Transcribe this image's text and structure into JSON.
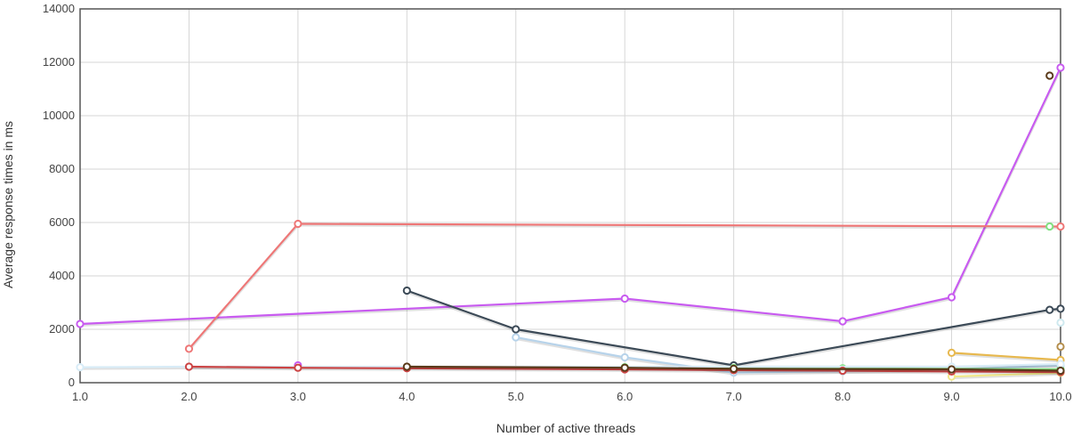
{
  "chart_data": {
    "type": "line",
    "xlabel": "Number of active threads",
    "ylabel": "Average response times in ms",
    "xlim": [
      1.0,
      10.0
    ],
    "ylim": [
      0,
      14000
    ],
    "x_ticks": [
      "1.0",
      "2.0",
      "3.0",
      "4.0",
      "5.0",
      "6.0",
      "7.0",
      "8.0",
      "9.0",
      "10.0"
    ],
    "y_ticks": [
      "0",
      "2000",
      "4000",
      "6000",
      "8000",
      "10000",
      "12000",
      "14000"
    ],
    "grid": true,
    "legend": "none",
    "series": [
      {
        "color": "#c85bf0",
        "points": [
          [
            1.0,
            2200
          ],
          [
            3.0,
            650
          ],
          [
            6.0,
            3150
          ],
          [
            8.0,
            2300
          ],
          [
            9.0,
            3200
          ],
          [
            10.0,
            11800
          ]
        ],
        "connect": [
          [
            0,
            2
          ],
          [
            2,
            3
          ],
          [
            3,
            4
          ],
          [
            4,
            5
          ]
        ]
      },
      {
        "color": "#ee7777",
        "points": [
          [
            2.0,
            1270
          ],
          [
            3.0,
            5950
          ],
          [
            10.0,
            5850
          ]
        ]
      },
      {
        "color": "#3c4a57",
        "points": [
          [
            4.0,
            3450
          ],
          [
            5.0,
            2000
          ],
          [
            7.0,
            650
          ],
          [
            9.9,
            2730
          ],
          [
            10.0,
            2770
          ]
        ]
      },
      {
        "color": "#b7d3ea",
        "points": [
          [
            5.0,
            1700
          ],
          [
            6.0,
            950
          ],
          [
            7.0,
            380
          ],
          [
            8.0,
            430
          ],
          [
            9.0,
            500
          ],
          [
            10.0,
            650
          ]
        ]
      },
      {
        "color": "#7fe07f",
        "points": [
          [
            6.0,
            580
          ],
          [
            7.0,
            550
          ],
          [
            8.0,
            540
          ],
          [
            9.0,
            520
          ],
          [
            9.9,
            5850
          ],
          [
            10.0,
            500
          ]
        ],
        "connect": [
          [
            0,
            1
          ],
          [
            1,
            2
          ],
          [
            2,
            3
          ],
          [
            3,
            5
          ]
        ]
      },
      {
        "color": "#e7b84e",
        "points": [
          [
            9.0,
            1120
          ],
          [
            10.0,
            850
          ]
        ]
      },
      {
        "color": "#f0e88a",
        "points": [
          [
            9.0,
            230
          ],
          [
            10.0,
            370
          ]
        ]
      },
      {
        "color": "#b58f4e",
        "points": [
          [
            10.0,
            1350
          ]
        ]
      },
      {
        "color": "#d8ecf7",
        "points": [
          [
            1.0,
            580
          ],
          [
            2.0,
            600
          ],
          [
            9.0,
            600
          ],
          [
            10.0,
            700
          ]
        ]
      },
      {
        "color": "#cfe9ef",
        "points": [
          [
            10.0,
            2250
          ]
        ]
      },
      {
        "color": "#cc4444",
        "points": [
          [
            2.0,
            600
          ],
          [
            3.0,
            560
          ],
          [
            4.0,
            540
          ],
          [
            6.0,
            500
          ],
          [
            7.0,
            470
          ],
          [
            8.0,
            450
          ],
          [
            9.0,
            420
          ],
          [
            10.0,
            400
          ]
        ]
      },
      {
        "color": "#5a3a1a",
        "points": [
          [
            4.0,
            600
          ],
          [
            6.0,
            560
          ],
          [
            7.0,
            520
          ],
          [
            9.0,
            500
          ],
          [
            9.9,
            11500
          ],
          [
            10.0,
            450
          ]
        ],
        "connect": [
          [
            0,
            1
          ],
          [
            1,
            2
          ],
          [
            2,
            3
          ],
          [
            3,
            5
          ]
        ]
      }
    ]
  }
}
